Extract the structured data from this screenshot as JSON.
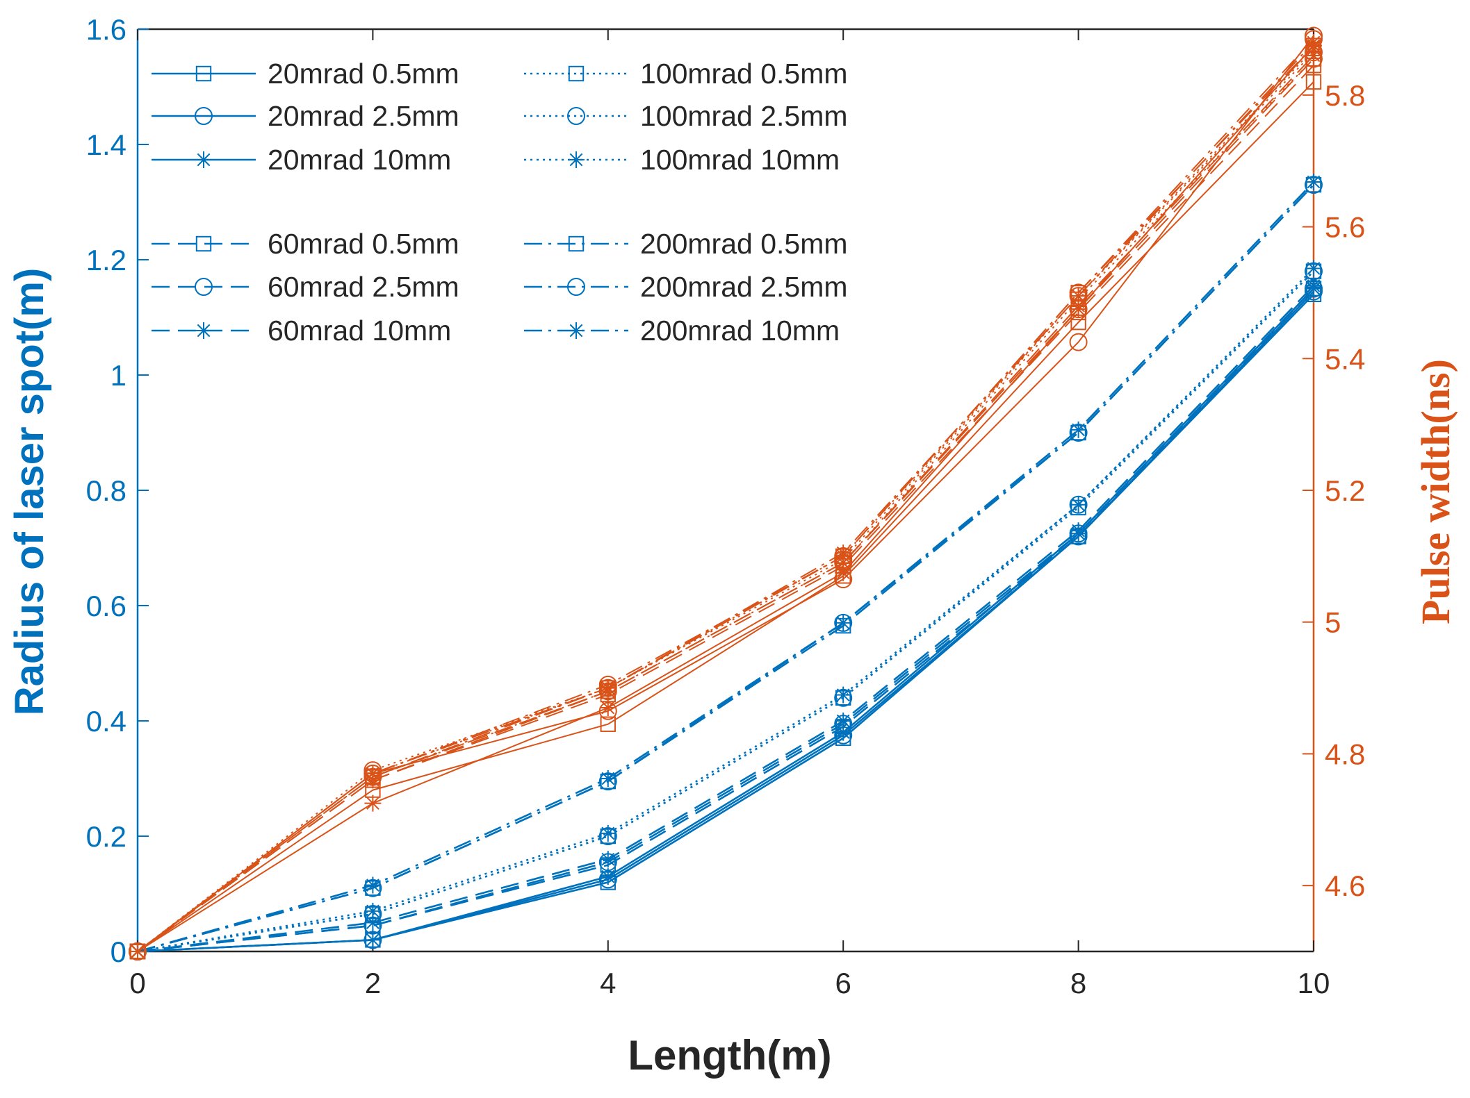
{
  "chart_data": {
    "type": "line",
    "xlabel": "Length(m)",
    "ylabel_left": "Radius of laser spot(m)",
    "ylabel_right": "Pulse width(ns)",
    "x": [
      0,
      2,
      4,
      6,
      8,
      10
    ],
    "x_ticks": [
      "0",
      "2",
      "4",
      "6",
      "8",
      "10"
    ],
    "ylim_left": [
      0,
      1.6
    ],
    "y_ticks_left": [
      "0",
      "0.2",
      "0.4",
      "0.6",
      "0.8",
      "1",
      "1.2",
      "1.4",
      "1.6"
    ],
    "ylim_right": [
      4.5,
      5.9
    ],
    "y_ticks_right": [
      "4.6",
      "4.8",
      "5",
      "5.2",
      "5.4",
      "5.6",
      "5.8"
    ],
    "colors": {
      "left": "#0072bd",
      "right": "#d95319",
      "axis": "#262626"
    },
    "legend_position": "top-left",
    "series": [
      {
        "name": "20mrad 0.5mm",
        "axis": "left",
        "line": "solid",
        "marker": "square",
        "values": [
          0,
          0.02,
          0.12,
          0.37,
          0.72,
          1.14
        ]
      },
      {
        "name": "20mrad 2.5mm",
        "axis": "left",
        "line": "solid",
        "marker": "circle",
        "values": [
          0,
          0.02,
          0.125,
          0.375,
          0.72,
          1.145
        ]
      },
      {
        "name": "20mrad 10mm",
        "axis": "left",
        "line": "solid",
        "marker": "star",
        "values": [
          0,
          0.02,
          0.13,
          0.38,
          0.725,
          1.15
        ]
      },
      {
        "name": "100mrad 0.5mm",
        "axis": "left",
        "line": "dotted",
        "marker": "square",
        "values": [
          0,
          0.065,
          0.2,
          0.44,
          0.77,
          1.18
        ]
      },
      {
        "name": "100mrad 2.5mm",
        "axis": "left",
        "line": "dotted",
        "marker": "circle",
        "values": [
          0,
          0.065,
          0.2,
          0.44,
          0.775,
          1.18
        ]
      },
      {
        "name": "100mrad 10mm",
        "axis": "left",
        "line": "dotted",
        "marker": "star",
        "values": [
          0,
          0.07,
          0.205,
          0.445,
          0.775,
          1.185
        ]
      },
      {
        "name": "60mrad 0.5mm",
        "axis": "left",
        "line": "dashed",
        "marker": "square",
        "values": [
          0,
          0.045,
          0.15,
          0.39,
          0.72,
          1.15
        ]
      },
      {
        "name": "60mrad 2.5mm",
        "axis": "left",
        "line": "dashed",
        "marker": "circle",
        "values": [
          0,
          0.045,
          0.155,
          0.395,
          0.725,
          1.15
        ]
      },
      {
        "name": "60mrad 10mm",
        "axis": "left",
        "line": "dashed",
        "marker": "star",
        "values": [
          0,
          0.05,
          0.16,
          0.4,
          0.73,
          1.155
        ]
      },
      {
        "name": "200mrad 0.5mm",
        "axis": "left",
        "line": "dashdot",
        "marker": "square",
        "values": [
          0,
          0.11,
          0.295,
          0.565,
          0.9,
          1.33
        ]
      },
      {
        "name": "200mrad 2.5mm",
        "axis": "left",
        "line": "dashdot",
        "marker": "circle",
        "values": [
          0,
          0.11,
          0.295,
          0.57,
          0.9,
          1.33
        ]
      },
      {
        "name": "200mrad 10mm",
        "axis": "left",
        "line": "dashdot",
        "marker": "star",
        "values": [
          0,
          0.115,
          0.3,
          0.57,
          0.905,
          1.335
        ]
      },
      {
        "name": "20mrad 0.5mm (pulse)",
        "axis": "right",
        "line": "solid",
        "marker": "square",
        "values": [
          4.5,
          4.745,
          4.845,
          5.07,
          5.455,
          5.82
        ]
      },
      {
        "name": "20mrad 2.5mm (pulse)",
        "axis": "right",
        "line": "solid",
        "marker": "circle",
        "values": [
          4.5,
          4.77,
          4.865,
          5.065,
          5.425,
          5.89
        ]
      },
      {
        "name": "20mrad 10mm (pulse)",
        "axis": "right",
        "line": "solid",
        "marker": "star",
        "values": [
          4.5,
          4.725,
          4.87,
          5.075,
          5.475,
          5.875
        ]
      },
      {
        "name": "100mrad 0.5mm (pulse)",
        "axis": "right",
        "line": "dotted",
        "marker": "square",
        "values": [
          4.5,
          4.765,
          4.895,
          5.09,
          5.49,
          5.855
        ]
      },
      {
        "name": "100mrad 2.5mm (pulse)",
        "axis": "right",
        "line": "dotted",
        "marker": "circle",
        "values": [
          4.5,
          4.775,
          4.9,
          5.095,
          5.495,
          5.865
        ]
      },
      {
        "name": "100mrad 10mm (pulse)",
        "axis": "right",
        "line": "dotted",
        "marker": "star",
        "values": [
          4.5,
          4.77,
          4.9,
          5.1,
          5.495,
          5.87
        ]
      },
      {
        "name": "60mrad 0.5mm (pulse)",
        "axis": "right",
        "line": "dashed",
        "marker": "square",
        "values": [
          4.5,
          4.76,
          4.89,
          5.085,
          5.47,
          5.845
        ]
      },
      {
        "name": "60mrad 2.5mm (pulse)",
        "axis": "right",
        "line": "dashed",
        "marker": "circle",
        "values": [
          4.5,
          4.765,
          4.895,
          5.09,
          5.475,
          5.855
        ]
      },
      {
        "name": "60mrad 10mm (pulse)",
        "axis": "right",
        "line": "dashed",
        "marker": "star",
        "values": [
          4.5,
          4.76,
          4.895,
          5.09,
          5.48,
          5.86
        ]
      },
      {
        "name": "200mrad 0.5mm (pulse)",
        "axis": "right",
        "line": "dashdot",
        "marker": "square",
        "values": [
          4.5,
          4.765,
          4.9,
          5.1,
          5.5,
          5.875
        ]
      },
      {
        "name": "200mrad 2.5mm (pulse)",
        "axis": "right",
        "line": "dashdot",
        "marker": "circle",
        "values": [
          4.5,
          4.77,
          4.905,
          5.1,
          5.5,
          5.885
        ]
      },
      {
        "name": "200mrad 10mm (pulse)",
        "axis": "right",
        "line": "dashdot",
        "marker": "star",
        "values": [
          4.5,
          4.77,
          4.9,
          5.105,
          5.495,
          5.88
        ]
      }
    ],
    "legend": [
      {
        "label": "20mrad 0.5mm",
        "line": "solid",
        "marker": "square"
      },
      {
        "label": "20mrad 2.5mm",
        "line": "solid",
        "marker": "circle"
      },
      {
        "label": "20mrad 10mm",
        "line": "solid",
        "marker": "star"
      },
      {
        "label": "100mrad 0.5mm",
        "line": "dotted",
        "marker": "square"
      },
      {
        "label": "100mrad 2.5mm",
        "line": "dotted",
        "marker": "circle"
      },
      {
        "label": "100mrad 10mm",
        "line": "dotted",
        "marker": "star"
      },
      {
        "label": "60mrad 0.5mm",
        "line": "dashed",
        "marker": "square"
      },
      {
        "label": "60mrad 2.5mm",
        "line": "dashed",
        "marker": "circle"
      },
      {
        "label": "60mrad 10mm",
        "line": "dashed",
        "marker": "star"
      },
      {
        "label": "200mrad 0.5mm",
        "line": "dashdot",
        "marker": "square"
      },
      {
        "label": "200mrad 2.5mm",
        "line": "dashdot",
        "marker": "circle"
      },
      {
        "label": "200mrad 10mm",
        "line": "dashdot",
        "marker": "star"
      }
    ]
  }
}
